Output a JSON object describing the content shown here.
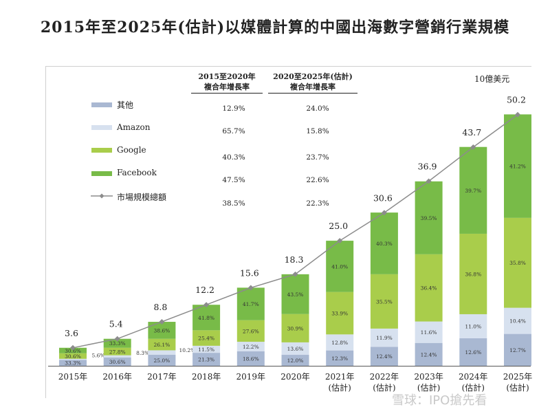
{
  "chart_data": {
    "type": "bar",
    "title": "2015年至2025年(估計)以媒體計算的中國出海數字營銷行業規模",
    "unit": "10億美元",
    "categories": [
      [
        "2015年"
      ],
      [
        "2016年"
      ],
      [
        "2017年"
      ],
      [
        "2018年"
      ],
      [
        "2019年"
      ],
      [
        "2020年"
      ],
      [
        "2021年",
        "(估計)"
      ],
      [
        "2022年",
        "(估計)"
      ],
      [
        "2023年",
        "(估計)"
      ],
      [
        "2024年",
        "(估計)"
      ],
      [
        "2025年",
        "(估計)"
      ]
    ],
    "totals": [
      "3.6",
      "5.4",
      "8.8",
      "12.2",
      "15.6",
      "18.3",
      "25.0",
      "30.6",
      "36.9",
      "43.7",
      "50.2"
    ],
    "total_values": [
      3.6,
      5.4,
      8.8,
      12.2,
      15.6,
      18.3,
      25.0,
      30.6,
      36.9,
      43.7,
      50.2
    ],
    "ylim": [
      0,
      52
    ],
    "series": [
      {
        "name": "其他",
        "color": "#a9b8d2",
        "labels": [
          "33.3%",
          "30.6%",
          "25.0%",
          "21.3%",
          "18.6%",
          "12.0%",
          "12.3%",
          "12.4%",
          "12.4%",
          "12.6%",
          "12.7%"
        ],
        "values": [
          33.3,
          30.6,
          25.0,
          21.3,
          18.6,
          12.0,
          12.3,
          12.4,
          12.4,
          12.6,
          12.7
        ]
      },
      {
        "name": "Amazon",
        "color": "#d7e1ef",
        "labels": [
          "5.6%",
          "8.3%",
          "10.2%",
          "11.5%",
          "12.2%",
          "13.6%",
          "12.8%",
          "11.9%",
          "11.6%",
          "11.0%",
          "10.4%"
        ],
        "values": [
          5.6,
          8.3,
          10.2,
          11.5,
          12.2,
          13.6,
          12.8,
          11.9,
          11.6,
          11.0,
          10.4
        ]
      },
      {
        "name": "Google",
        "color": "#a9cd4b",
        "labels": [
          "30.6%",
          "27.8%",
          "26.1%",
          "25.4%",
          "27.6%",
          "30.9%",
          "33.9%",
          "35.5%",
          "36.4%",
          "36.8%",
          "35.8%"
        ],
        "values": [
          30.6,
          27.8,
          26.1,
          25.4,
          27.6,
          30.9,
          33.9,
          35.5,
          36.4,
          36.8,
          35.8
        ]
      },
      {
        "name": "Facebook",
        "color": "#78bb48",
        "labels": [
          "30.6%",
          "33.3%",
          "38.6%",
          "41.8%",
          "41.7%",
          "43.5%",
          "41.0%",
          "40.3%",
          "39.5%",
          "39.7%",
          "41.2%"
        ],
        "values": [
          30.6,
          33.3,
          38.6,
          41.8,
          41.7,
          43.5,
          41.0,
          40.3,
          39.5,
          39.7,
          41.2
        ]
      }
    ],
    "line_series": {
      "name": "市場規模總額",
      "color": "#8c8c8c"
    },
    "cagr_table": {
      "headers": [
        [
          "2015至2020年",
          "複合年增長率"
        ],
        [
          "2020至2025年(估計)",
          "複合年增長率"
        ]
      ],
      "rows": [
        {
          "series": "其他",
          "cagr_2015_2020": "12.9%",
          "cagr_2020_2025": "24.0%"
        },
        {
          "series": "Amazon",
          "cagr_2015_2020": "65.7%",
          "cagr_2020_2025": "15.8%"
        },
        {
          "series": "Google",
          "cagr_2015_2020": "40.3%",
          "cagr_2020_2025": "23.7%"
        },
        {
          "series": "Facebook",
          "cagr_2015_2020": "47.5%",
          "cagr_2020_2025": "22.6%"
        },
        {
          "series": "市場規模總額",
          "cagr_2015_2020": "38.5%",
          "cagr_2020_2025": "22.3%"
        }
      ]
    }
  },
  "watermark": "雪球：IPO搶先看"
}
